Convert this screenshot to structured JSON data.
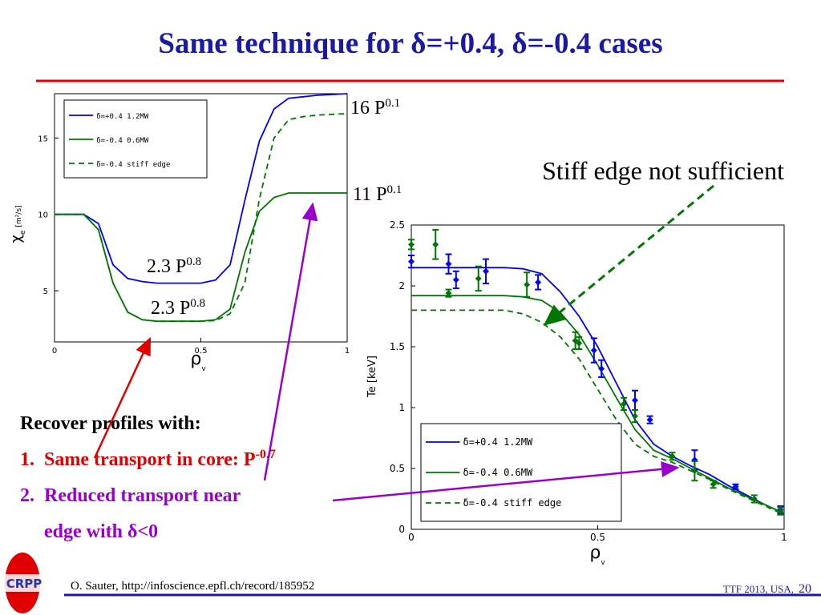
{
  "slide": {
    "title": "Same technique for δ=+0.4, δ=-0.4 cases",
    "note": "Stiff edge not sufficient",
    "heading": "Recover profiles with:",
    "items": [
      {
        "number": "1.",
        "text": "Same transport in core: P",
        "sup": "-0.7"
      },
      {
        "number": "2.",
        "lines": [
          "Reduced transport near",
          "edge with δ<0"
        ]
      }
    ],
    "footer": {
      "source": "O. Sauter, http://infoscience.epfl.ch/record/185952",
      "event": "TTF 2013, USA,",
      "page": "20"
    },
    "logo": "CRPP"
  },
  "chart_data": [
    {
      "type": "line",
      "xlabel": {
        "text": "ρ",
        "sub": "v"
      },
      "ylabel": {
        "text": "χ",
        "sub": "e",
        "unit": "[m²/s]"
      },
      "xlim": [
        0,
        1
      ],
      "xticks": [
        0,
        0.5,
        1
      ],
      "ylim": [
        1.65,
        17.9
      ],
      "yticks": [
        5,
        10,
        15
      ],
      "legend": "upper left",
      "x": [
        0,
        0.05,
        0.1,
        0.15,
        0.2,
        0.25,
        0.3,
        0.35,
        0.4,
        0.45,
        0.5,
        0.55,
        0.6,
        0.65,
        0.7,
        0.75,
        0.8,
        0.85,
        0.9,
        0.95,
        1
      ],
      "series": [
        {
          "name": "δ=+0.4 1.2MW",
          "color": "#0000ff",
          "style": "solid",
          "values": [
            10,
            10,
            10,
            9.4,
            6.7,
            5.8,
            5.6,
            5.5,
            5.5,
            5.5,
            5.5,
            5.7,
            6.7,
            10.9,
            14.8,
            16.9,
            17.6,
            17.7,
            17.8,
            17.85,
            17.9
          ]
        },
        {
          "name": "δ=-0.4 0.6MW",
          "color": "#007700",
          "style": "solid",
          "values": [
            10,
            10,
            10,
            9,
            5.5,
            3.6,
            3.1,
            3.0,
            3.0,
            3.0,
            3.0,
            3.1,
            3.8,
            7.5,
            10.2,
            11.1,
            11.4,
            11.4,
            11.4,
            11.4,
            11.4
          ]
        },
        {
          "name": "δ=-0.4 stiff edge",
          "color": "#007700",
          "style": "dashed",
          "values": [
            10,
            10,
            10,
            9,
            5.5,
            3.6,
            3.1,
            3.0,
            3.0,
            3.0,
            3.0,
            3.05,
            3.5,
            5.5,
            11,
            15.0,
            16.2,
            16.4,
            16.5,
            16.55,
            16.6
          ]
        }
      ],
      "annotations": [
        {
          "text": "16 P",
          "sup": "0.1"
        },
        {
          "text": "11 P",
          "sup": "0.1"
        },
        {
          "text": "2.3 P",
          "sup": "0.8"
        },
        {
          "text": "2.3 P",
          "sup": "0.8"
        }
      ]
    },
    {
      "type": "line",
      "xlabel": {
        "text": "ρ",
        "sub": "v"
      },
      "ylabel": {
        "text": "Te [keV]"
      },
      "xlim": [
        0,
        1
      ],
      "xticks": [
        0,
        0.5,
        1
      ],
      "ylim": [
        0,
        2.5
      ],
      "yticks": [
        0,
        0.5,
        1,
        1.5,
        2,
        2.5
      ],
      "legend": "lower left",
      "x": [
        0,
        0.05,
        0.1,
        0.15,
        0.2,
        0.25,
        0.3,
        0.35,
        0.4,
        0.45,
        0.5,
        0.55,
        0.6,
        0.65,
        0.7,
        0.75,
        0.8,
        0.85,
        0.9,
        0.95,
        1
      ],
      "series": [
        {
          "name": "δ=+0.4 1.2MW",
          "color": "#0000ff",
          "style": "solid",
          "values": [
            2.15,
            2.15,
            2.15,
            2.15,
            2.15,
            2.15,
            2.14,
            2.1,
            1.95,
            1.75,
            1.5,
            1.2,
            0.9,
            0.7,
            0.6,
            0.52,
            0.45,
            0.36,
            0.28,
            0.2,
            0.13
          ]
        },
        {
          "name": "δ=-0.4 0.6MW",
          "color": "#007700",
          "style": "solid",
          "values": [
            1.92,
            1.92,
            1.92,
            1.92,
            1.92,
            1.92,
            1.91,
            1.88,
            1.78,
            1.6,
            1.35,
            1.08,
            0.82,
            0.65,
            0.58,
            0.5,
            0.42,
            0.34,
            0.27,
            0.2,
            0.13
          ]
        },
        {
          "name": "δ=-0.4 stiff edge",
          "color": "#007700",
          "style": "dashed",
          "values": [
            1.8,
            1.8,
            1.8,
            1.8,
            1.8,
            1.8,
            1.77,
            1.7,
            1.58,
            1.4,
            1.15,
            0.9,
            0.7,
            0.6,
            0.55,
            0.48,
            0.41,
            0.33,
            0.26,
            0.19,
            0.12
          ]
        }
      ],
      "error_series": [
        {
          "color": "#0000ff",
          "x": [
            0.0,
            0.1,
            0.12,
            0.2,
            0.34,
            0.49,
            0.51,
            0.6,
            0.64,
            0.76,
            0.87,
            0.99
          ],
          "values": [
            2.2,
            2.18,
            2.05,
            2.12,
            2.03,
            1.47,
            1.32,
            1.06,
            0.9,
            0.57,
            0.35,
            0.16
          ],
          "errors": [
            0.05,
            0.08,
            0.07,
            0.1,
            0.06,
            0.1,
            0.07,
            0.08,
            0.03,
            0.08,
            0.02,
            0.03
          ]
        },
        {
          "color": "#007700",
          "x": [
            0.0,
            0.065,
            0.1,
            0.18,
            0.31,
            0.44,
            0.45,
            0.57,
            0.6,
            0.7,
            0.76,
            0.81,
            0.92,
            0.99
          ],
          "values": [
            2.34,
            2.34,
            1.94,
            2.06,
            2.01,
            1.55,
            1.53,
            1.03,
            0.93,
            0.6,
            0.48,
            0.37,
            0.25,
            0.15
          ],
          "errors": [
            0.04,
            0.12,
            0.03,
            0.1,
            0.1,
            0.07,
            0.05,
            0.05,
            0.05,
            0.03,
            0.08,
            0.03,
            0.03,
            0.03
          ]
        }
      ]
    }
  ]
}
